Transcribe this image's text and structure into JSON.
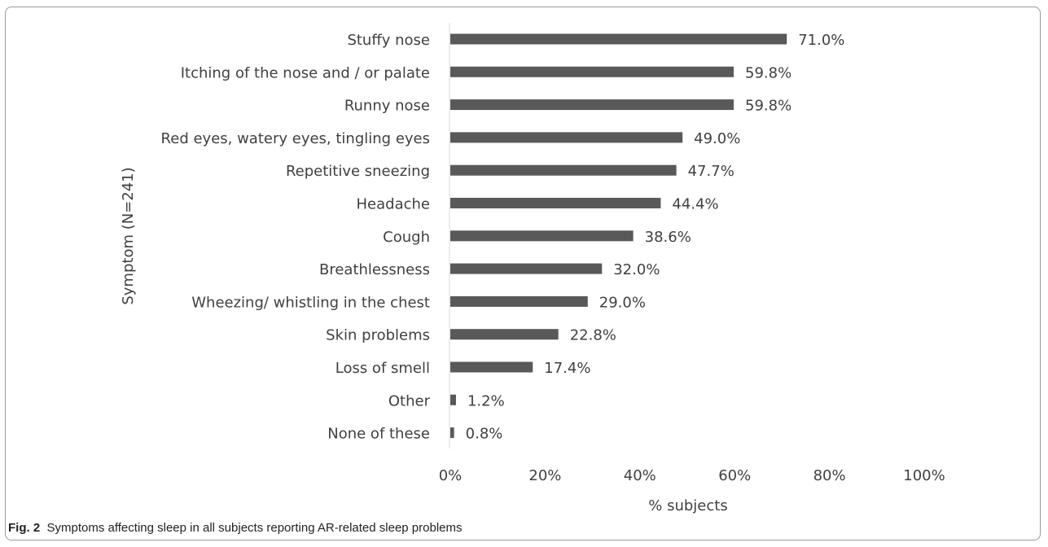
{
  "chart_data": {
    "type": "bar",
    "orientation": "horizontal",
    "categories": [
      "Stuffy nose",
      "Itching of the nose and / or palate",
      "Runny nose",
      "Red eyes, watery eyes, tingling eyes",
      "Repetitive sneezing",
      "Headache",
      "Cough",
      "Breathlessness",
      "Wheezing/ whistling in the chest",
      "Skin problems",
      "Loss of smell",
      "Other",
      "None of these"
    ],
    "values": [
      71.0,
      59.8,
      59.8,
      49.0,
      47.7,
      44.4,
      38.6,
      32.0,
      29.0,
      22.8,
      17.4,
      1.2,
      0.8
    ],
    "value_labels": [
      "71.0%",
      "59.8%",
      "59.8%",
      "49.0%",
      "47.7%",
      "44.4%",
      "38.6%",
      "32.0%",
      "29.0%",
      "22.8%",
      "17.4%",
      "1.2%",
      "0.8%"
    ],
    "xlabel": "% subjects",
    "ylabel": "Symptom (N=241)",
    "xlim": [
      0,
      100
    ],
    "xticks": [
      "0%",
      "20%",
      "40%",
      "60%",
      "80%",
      "100%"
    ],
    "grid": false,
    "bar_color": "#595959"
  },
  "caption": {
    "label": "Fig. 2",
    "text": "Symptoms affecting sleep in all subjects reporting AR-related sleep problems"
  }
}
